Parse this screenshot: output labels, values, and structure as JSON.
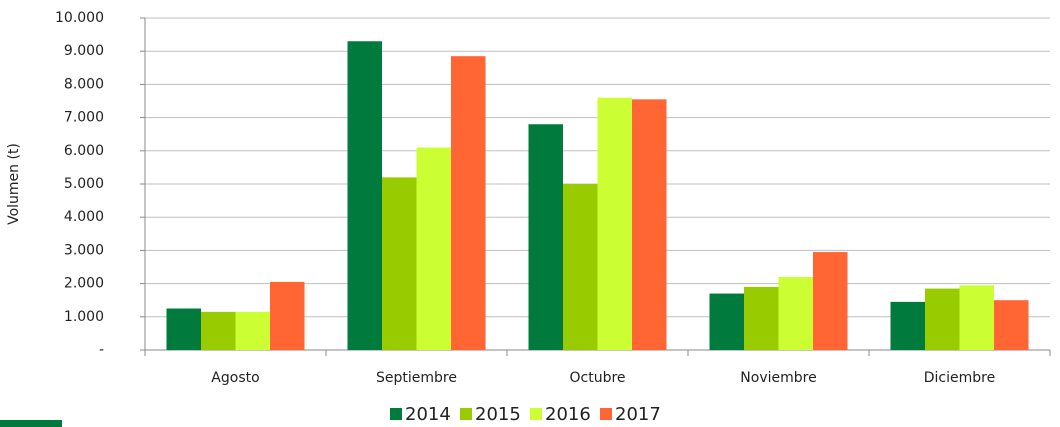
{
  "chart_data": {
    "type": "bar",
    "y_label": "Volumen (t)",
    "categories": [
      "Agosto",
      "Septiembre",
      "Octubre",
      "Noviembre",
      "Diciembre"
    ],
    "series": [
      {
        "name": "2014",
        "color": "#007a3d",
        "values": [
          1250,
          9300,
          6800,
          1700,
          1450
        ]
      },
      {
        "name": "2015",
        "color": "#99cc00",
        "values": [
          1150,
          5200,
          5000,
          1900,
          1850
        ]
      },
      {
        "name": "2016",
        "color": "#ccff33",
        "values": [
          1150,
          6100,
          7600,
          2200,
          1950
        ]
      },
      {
        "name": "2017",
        "color": "#ff6633",
        "values": [
          2050,
          8850,
          7550,
          2950,
          1500
        ]
      }
    ],
    "ylim": [
      0,
      10000
    ],
    "yticks": [
      {
        "value": 0,
        "label": "-"
      },
      {
        "value": 1000,
        "label": "1.000"
      },
      {
        "value": 2000,
        "label": "2.000"
      },
      {
        "value": 3000,
        "label": "3.000"
      },
      {
        "value": 4000,
        "label": "4.000"
      },
      {
        "value": 5000,
        "label": "5.000"
      },
      {
        "value": 6000,
        "label": "6.000"
      },
      {
        "value": 7000,
        "label": "7.000"
      },
      {
        "value": 8000,
        "label": "8.000"
      },
      {
        "value": 9000,
        "label": "9.000"
      },
      {
        "value": 10000,
        "label": "10.000"
      }
    ],
    "grid": true,
    "legend": "bottom"
  }
}
